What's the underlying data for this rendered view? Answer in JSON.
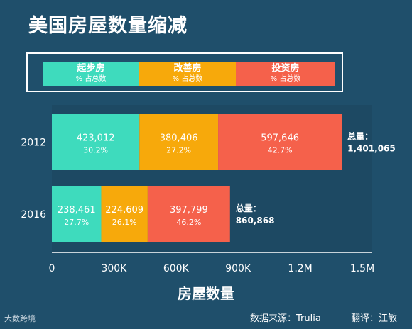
{
  "title": "美国房屋数量缩减",
  "legend": [
    {
      "name": "起步房",
      "sub": "% 占总数",
      "color": "#3edbbd"
    },
    {
      "name": "改善房",
      "sub": "% 占总数",
      "color": "#f7a90b"
    },
    {
      "name": "投资房",
      "sub": "% 占总数",
      "color": "#f5614b"
    }
  ],
  "footer": {
    "logo": "大数跨境",
    "source": "数据来源：Trulia",
    "translator": "翻译：江敏"
  },
  "chart_data": {
    "type": "bar",
    "orientation": "horizontal",
    "stacked": true,
    "categories": [
      "2012",
      "2016"
    ],
    "series": [
      {
        "name": "起步房",
        "values": [
          423012,
          238461
        ],
        "labels": [
          "423,012",
          "238,461"
        ],
        "percents": [
          "30.2%",
          "27.7%"
        ],
        "color": "#3edbbd"
      },
      {
        "name": "改善房",
        "values": [
          380406,
          224609
        ],
        "labels": [
          "380,406",
          "224,609"
        ],
        "percents": [
          "27.2%",
          "26.1%"
        ],
        "color": "#f7a90b"
      },
      {
        "name": "投资房",
        "values": [
          597646,
          397799
        ],
        "labels": [
          "597,646",
          "397,799"
        ],
        "percents": [
          "42.7%",
          "46.2%"
        ],
        "color": "#f5614b"
      }
    ],
    "totals": [
      {
        "label": "总量：",
        "value": "1,401,065"
      },
      {
        "label": "总量：",
        "value": "860,868"
      }
    ],
    "xlim": [
      0,
      1500000
    ],
    "xticks": [
      0,
      300000,
      600000,
      900000,
      1200000,
      1500000
    ],
    "xtick_labels": [
      "0",
      "300K",
      "600K",
      "900K",
      "1.2M",
      "1.5M"
    ],
    "xlabel": "房屋数量",
    "ylabel": ""
  }
}
